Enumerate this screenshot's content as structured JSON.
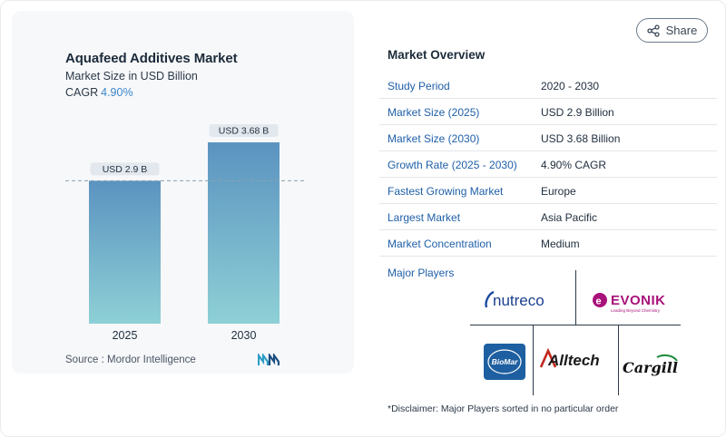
{
  "chart_card": {
    "title": "Aquafeed Additives Market",
    "subtitle": "Market Size in USD Billion",
    "cagr_label": "CAGR",
    "cagr_value": "4.90%",
    "source": "Source :  Mordor Intelligence"
  },
  "chart_data": {
    "type": "bar",
    "categories": [
      "2025",
      "2030"
    ],
    "values": [
      2.9,
      3.68
    ],
    "data_labels": [
      "USD 2.9 B",
      "USD 3.68 B"
    ],
    "title": "Aquafeed Additives Market",
    "subtitle": "Market Size in USD Billion",
    "ylim": [
      0,
      3.68
    ],
    "reference_line": 2.9,
    "grid": false,
    "colors": {
      "bar_top": "#5b93c0",
      "bar_bottom": "#8ed0d6",
      "label_bg": "#e3e8ee",
      "ref_line": "#8aa2b2"
    }
  },
  "share": {
    "label": "Share",
    "icon": "share-icon"
  },
  "overview": {
    "title": "Market Overview",
    "rows": [
      {
        "label": "Study Period",
        "value": "2020 - 2030"
      },
      {
        "label": "Market Size (2025)",
        "value": "USD 2.9 Billion"
      },
      {
        "label": "Market Size (2030)",
        "value": "USD 3.68 Billion"
      },
      {
        "label": "Growth Rate (2025 - 2030)",
        "value": "4.90% CAGR"
      },
      {
        "label": "Fastest Growing Market",
        "value": "Europe"
      },
      {
        "label": "Largest Market",
        "value": "Asia Pacific"
      },
      {
        "label": "Market Concentration",
        "value": "Medium"
      }
    ],
    "players_title": "Major Players",
    "players": [
      {
        "name": "nutreco",
        "icon": "nutreco-logo"
      },
      {
        "name": "EVONIK",
        "tagline": "Leading Beyond Chemistry",
        "icon": "evonik-logo"
      },
      {
        "name": "BioMar",
        "icon": "biomar-logo"
      },
      {
        "name": "Alltech",
        "icon": "alltech-logo"
      },
      {
        "name": "Cargill",
        "icon": "cargill-logo"
      }
    ],
    "disclaimer": "*Disclaimer: Major Players sorted in no particular order"
  },
  "brand_color": "#1f5fa8",
  "accent_color": "#3a86c8"
}
